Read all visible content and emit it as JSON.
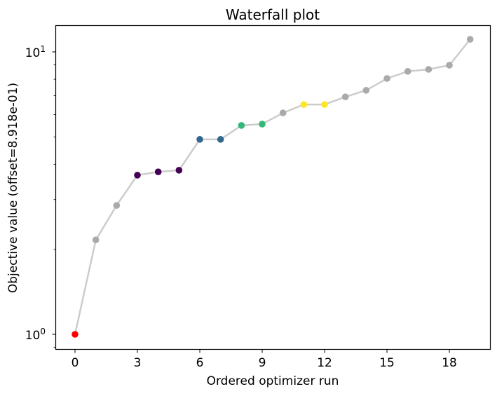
{
  "figure": {
    "title": "Waterfall plot",
    "xlabel": "Ordered optimizer run",
    "ylabel": "Objective value (offset=8.918e-01)"
  },
  "colors": {
    "line": "#cccccc",
    "default_point": "#aaaaaa",
    "best_point": "#ff0000",
    "cluster_1": "#440154",
    "cluster_2": "#31688e",
    "cluster_3": "#35b779",
    "cluster_4": "#fde725",
    "axes": "#000000",
    "background": "#ffffff"
  },
  "chart_data": {
    "type": "line",
    "title": "Waterfall plot",
    "xlabel": "Ordered optimizer run",
    "ylabel": "Objective value (offset=8.918e-01)",
    "yscale": "log",
    "xlim": [
      -0.8,
      19.8
    ],
    "ylim": [
      0.9,
      12.7
    ],
    "grid": false,
    "legend": null,
    "x_ticks": [
      0,
      3,
      6,
      9,
      12,
      15,
      18
    ],
    "x_tick_labels": [
      "0",
      "3",
      "6",
      "9",
      "12",
      "15",
      "18"
    ],
    "y_ticks": [
      1,
      10
    ],
    "y_tick_labels": [
      "10^0",
      "10^1"
    ],
    "x": [
      0,
      1,
      2,
      3,
      4,
      5,
      6,
      7,
      8,
      9,
      10,
      11,
      12,
      13,
      14,
      15,
      16,
      17,
      18,
      19
    ],
    "values": [
      1.0,
      2.16,
      2.86,
      3.66,
      3.76,
      3.81,
      4.9,
      4.9,
      5.49,
      5.55,
      6.08,
      6.51,
      6.51,
      6.93,
      7.31,
      8.05,
      8.53,
      8.67,
      8.97,
      11.08
    ],
    "point_groups": [
      "best",
      "none",
      "none",
      "c1",
      "c1",
      "c1",
      "c2",
      "c2",
      "c3",
      "c3",
      "none",
      "c4",
      "c4",
      "none",
      "none",
      "none",
      "none",
      "none",
      "none",
      "none"
    ]
  }
}
